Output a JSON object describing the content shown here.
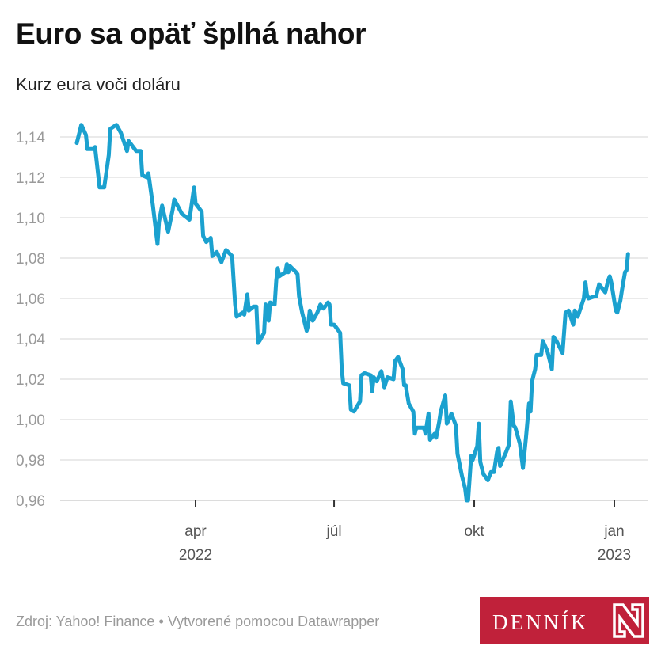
{
  "header": {
    "title": "Euro sa opäť šplhá nahor",
    "subtitle": "Kurz eura voči doláru"
  },
  "footer": {
    "source": "Zdroj: Yahoo! Finance • Vytvorené pomocou Datawrapper",
    "logo_text": "DENNÍK N"
  },
  "colors": {
    "line": "#1ba1cf",
    "grid": "#e4e4e4",
    "logo": "#c0213a"
  },
  "chart_data": {
    "type": "line",
    "title": "Euro sa opäť šplhá nahor",
    "subtitle": "Kurz eura voči doláru",
    "xlabel": "",
    "ylabel": "",
    "ylim": [
      0.96,
      1.14
    ],
    "grid": true,
    "y_ticks": [
      "1,14",
      "1,12",
      "1,10",
      "1,08",
      "1,06",
      "1,04",
      "1,02",
      "1,00",
      "0,98",
      "0,96"
    ],
    "x_ticks": [
      {
        "date": "2022-04-01",
        "label": "apr",
        "sublabel": "2022"
      },
      {
        "date": "2022-07-01",
        "label": "júl",
        "sublabel": ""
      },
      {
        "date": "2022-10-01",
        "label": "okt",
        "sublabel": ""
      },
      {
        "date": "2023-01-01",
        "label": "jan",
        "sublabel": "2023"
      }
    ],
    "series": [
      {
        "points": [
          [
            "2022-01-13",
            1.137
          ],
          [
            "2022-01-16",
            1.146
          ],
          [
            "2022-01-19",
            1.141
          ],
          [
            "2022-01-20",
            1.134
          ],
          [
            "2022-01-24",
            1.134
          ],
          [
            "2022-01-25",
            1.135
          ],
          [
            "2022-01-28",
            1.115
          ],
          [
            "2022-01-31",
            1.115
          ],
          [
            "2022-02-03",
            1.131
          ],
          [
            "2022-02-04",
            1.144
          ],
          [
            "2022-02-08",
            1.146
          ],
          [
            "2022-02-11",
            1.142
          ],
          [
            "2022-02-15",
            1.133
          ],
          [
            "2022-02-16",
            1.138
          ],
          [
            "2022-02-21",
            1.133
          ],
          [
            "2022-02-24",
            1.133
          ],
          [
            "2022-02-25",
            1.121
          ],
          [
            "2022-02-28",
            1.12
          ],
          [
            "2022-03-01",
            1.122
          ],
          [
            "2022-03-04",
            1.106
          ],
          [
            "2022-03-07",
            1.087
          ],
          [
            "2022-03-08",
            1.098
          ],
          [
            "2022-03-10",
            1.106
          ],
          [
            "2022-03-14",
            1.093
          ],
          [
            "2022-03-17",
            1.104
          ],
          [
            "2022-03-18",
            1.109
          ],
          [
            "2022-03-23",
            1.102
          ],
          [
            "2022-03-28",
            1.099
          ],
          [
            "2022-03-31",
            1.115
          ],
          [
            "2022-04-01",
            1.107
          ],
          [
            "2022-04-05",
            1.103
          ],
          [
            "2022-04-06",
            1.091
          ],
          [
            "2022-04-08",
            1.088
          ],
          [
            "2022-04-11",
            1.09
          ],
          [
            "2022-04-12",
            1.081
          ],
          [
            "2022-04-15",
            1.083
          ],
          [
            "2022-04-18",
            1.078
          ],
          [
            "2022-04-21",
            1.084
          ],
          [
            "2022-04-25",
            1.081
          ],
          [
            "2022-04-27",
            1.057
          ],
          [
            "2022-04-28",
            1.051
          ],
          [
            "2022-05-02",
            1.053
          ],
          [
            "2022-05-03",
            1.052
          ],
          [
            "2022-05-05",
            1.062
          ],
          [
            "2022-05-06",
            1.054
          ],
          [
            "2022-05-09",
            1.056
          ],
          [
            "2022-05-11",
            1.056
          ],
          [
            "2022-05-12",
            1.038
          ],
          [
            "2022-05-13",
            1.039
          ],
          [
            "2022-05-16",
            1.043
          ],
          [
            "2022-05-17",
            1.057
          ],
          [
            "2022-05-19",
            1.049
          ],
          [
            "2022-05-20",
            1.058
          ],
          [
            "2022-05-23",
            1.057
          ],
          [
            "2022-05-24",
            1.069
          ],
          [
            "2022-05-25",
            1.075
          ],
          [
            "2022-05-26",
            1.071
          ],
          [
            "2022-05-30",
            1.073
          ],
          [
            "2022-05-31",
            1.077
          ],
          [
            "2022-06-01",
            1.073
          ],
          [
            "2022-06-02",
            1.076
          ],
          [
            "2022-06-06",
            1.073
          ],
          [
            "2022-06-07",
            1.072
          ],
          [
            "2022-06-08",
            1.061
          ],
          [
            "2022-06-10",
            1.053
          ],
          [
            "2022-06-13",
            1.044
          ],
          [
            "2022-06-14",
            1.047
          ],
          [
            "2022-06-15",
            1.054
          ],
          [
            "2022-06-17",
            1.049
          ],
          [
            "2022-06-20",
            1.053
          ],
          [
            "2022-06-22",
            1.057
          ],
          [
            "2022-06-24",
            1.055
          ],
          [
            "2022-06-27",
            1.058
          ],
          [
            "2022-06-28",
            1.057
          ],
          [
            "2022-06-29",
            1.047
          ],
          [
            "2022-07-01",
            1.047
          ],
          [
            "2022-07-05",
            1.043
          ],
          [
            "2022-07-06",
            1.025
          ],
          [
            "2022-07-07",
            1.018
          ],
          [
            "2022-07-11",
            1.017
          ],
          [
            "2022-07-12",
            1.005
          ],
          [
            "2022-07-14",
            1.004
          ],
          [
            "2022-07-18",
            1.009
          ],
          [
            "2022-07-19",
            1.022
          ],
          [
            "2022-07-21",
            1.023
          ],
          [
            "2022-07-25",
            1.022
          ],
          [
            "2022-07-26",
            1.014
          ],
          [
            "2022-07-27",
            1.021
          ],
          [
            "2022-07-29",
            1.019
          ],
          [
            "2022-08-01",
            1.024
          ],
          [
            "2022-08-03",
            1.016
          ],
          [
            "2022-08-05",
            1.021
          ],
          [
            "2022-08-09",
            1.02
          ],
          [
            "2022-08-10",
            1.029
          ],
          [
            "2022-08-12",
            1.031
          ],
          [
            "2022-08-15",
            1.025
          ],
          [
            "2022-08-16",
            1.017
          ],
          [
            "2022-08-17",
            1.017
          ],
          [
            "2022-08-19",
            1.008
          ],
          [
            "2022-08-22",
            1.004
          ],
          [
            "2022-08-23",
            0.993
          ],
          [
            "2022-08-24",
            0.996
          ],
          [
            "2022-08-29",
            0.996
          ],
          [
            "2022-08-30",
            0.993
          ],
          [
            "2022-09-01",
            1.003
          ],
          [
            "2022-09-02",
            0.99
          ],
          [
            "2022-09-05",
            0.993
          ],
          [
            "2022-09-06",
            0.991
          ],
          [
            "2022-09-08",
            0.999
          ],
          [
            "2022-09-09",
            1.004
          ],
          [
            "2022-09-12",
            1.012
          ],
          [
            "2022-09-13",
            0.998
          ],
          [
            "2022-09-15",
            1.001
          ],
          [
            "2022-09-16",
            1.003
          ],
          [
            "2022-09-19",
            0.997
          ],
          [
            "2022-09-20",
            0.983
          ],
          [
            "2022-09-23",
            0.972
          ],
          [
            "2022-09-25",
            0.966
          ],
          [
            "2022-09-26",
            0.96
          ],
          [
            "2022-09-27",
            0.96
          ],
          [
            "2022-09-29",
            0.982
          ],
          [
            "2022-09-30",
            0.98
          ],
          [
            "2022-10-03",
            0.987
          ],
          [
            "2022-10-04",
            0.998
          ],
          [
            "2022-10-05",
            0.979
          ],
          [
            "2022-10-07",
            0.973
          ],
          [
            "2022-10-10",
            0.97
          ],
          [
            "2022-10-12",
            0.974
          ],
          [
            "2022-10-14",
            0.974
          ],
          [
            "2022-10-16",
            0.984
          ],
          [
            "2022-10-17",
            0.986
          ],
          [
            "2022-10-18",
            0.977
          ],
          [
            "2022-10-22",
            0.984
          ],
          [
            "2022-10-24",
            0.988
          ],
          [
            "2022-10-25",
            1.009
          ],
          [
            "2022-10-27",
            0.997
          ],
          [
            "2022-10-28",
            0.996
          ],
          [
            "2022-10-31",
            0.988
          ],
          [
            "2022-11-02",
            0.976
          ],
          [
            "2022-11-04",
            0.991
          ],
          [
            "2022-11-06",
            1.008
          ],
          [
            "2022-11-07",
            1.004
          ],
          [
            "2022-11-08",
            1.019
          ],
          [
            "2022-11-10",
            1.025
          ],
          [
            "2022-11-11",
            1.032
          ],
          [
            "2022-11-14",
            1.032
          ],
          [
            "2022-11-15",
            1.039
          ],
          [
            "2022-11-18",
            1.034
          ],
          [
            "2022-11-21",
            1.025
          ],
          [
            "2022-11-22",
            1.041
          ],
          [
            "2022-11-24",
            1.039
          ],
          [
            "2022-11-28",
            1.033
          ],
          [
            "2022-11-30",
            1.053
          ],
          [
            "2022-12-02",
            1.054
          ],
          [
            "2022-12-05",
            1.047
          ],
          [
            "2022-12-06",
            1.054
          ],
          [
            "2022-12-08",
            1.051
          ],
          [
            "2022-12-12",
            1.06
          ],
          [
            "2022-12-13",
            1.068
          ],
          [
            "2022-12-14",
            1.062
          ],
          [
            "2022-12-15",
            1.06
          ],
          [
            "2022-12-19",
            1.061
          ],
          [
            "2022-12-20",
            1.061
          ],
          [
            "2022-12-22",
            1.067
          ],
          [
            "2022-12-26",
            1.063
          ],
          [
            "2022-12-28",
            1.069
          ],
          [
            "2022-12-29",
            1.071
          ],
          [
            "2022-12-30",
            1.068
          ],
          [
            "2023-01-02",
            1.054
          ],
          [
            "2023-01-03",
            1.053
          ],
          [
            "2023-01-05",
            1.059
          ],
          [
            "2023-01-06",
            1.064
          ],
          [
            "2023-01-08",
            1.073
          ],
          [
            "2023-01-09",
            1.074
          ],
          [
            "2023-01-10",
            1.082
          ]
        ]
      }
    ]
  }
}
